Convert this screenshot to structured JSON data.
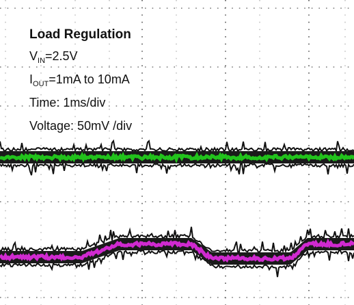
{
  "title": "Load Regulation",
  "annotations": [
    {
      "main": "V",
      "sub": "IN",
      "rest": "=2.5V"
    },
    {
      "main": "I",
      "sub": "OUT",
      "rest": "=1mA to 10mA"
    },
    {
      "main": "Time: 1ms/div"
    },
    {
      "main": "Voltage: 50mV /div"
    }
  ]
}
